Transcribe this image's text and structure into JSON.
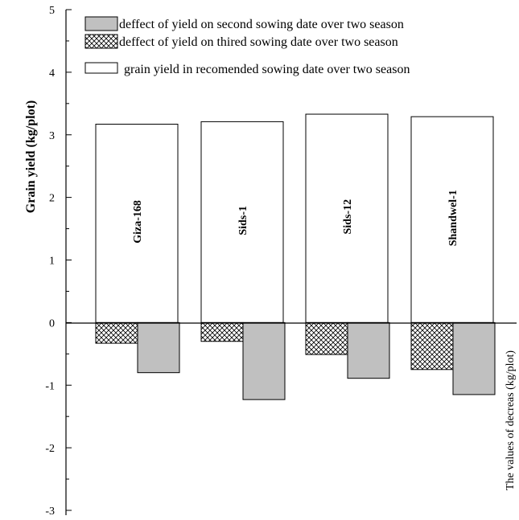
{
  "chart_data": {
    "type": "bar",
    "categories": [
      "Giza-168",
      "Sids-1",
      "Sids-12",
      "Shandwel-1"
    ],
    "series": [
      {
        "name": "grain yield in recomended sowing date over two season",
        "values": [
          3.17,
          3.21,
          3.33,
          3.29
        ],
        "fill": "#ffffff"
      },
      {
        "name": "deffect of yield on thired sowing date over two season",
        "values": [
          -0.33,
          -0.3,
          -0.51,
          -0.75
        ],
        "fill": "crosshatch"
      },
      {
        "name": "deffect of yield on second sowing date over two season",
        "values": [
          -0.8,
          -1.23,
          -0.89,
          -1.15
        ],
        "fill": "#c0c0c0"
      }
    ],
    "ylabel": "Grain yield (kg/plot)",
    "y2label": "The values of decreas (kg/plot)",
    "ylim": [
      -3,
      5
    ],
    "yticks": [
      "-3",
      "-2",
      "-1",
      "0",
      "1",
      "2",
      "3",
      "4",
      "5"
    ],
    "grid": false,
    "legend": "top"
  }
}
